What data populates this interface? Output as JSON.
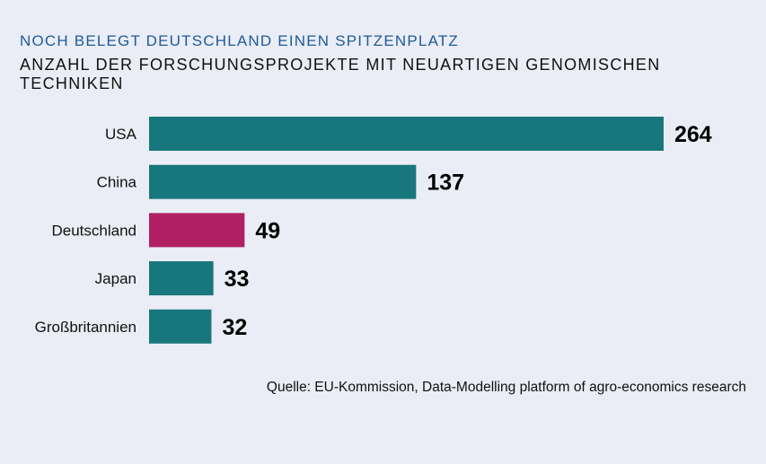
{
  "chart_data": {
    "type": "bar",
    "orientation": "horizontal",
    "kicker": "NOCH BELEGT DEUTSCHLAND EINEN SPITZENPLATZ",
    "title": "ANZAHL DER FORSCHUNGSPROJEKTE MIT NEUARTIGEN GENOMISCHEN TECHNIKEN",
    "categories": [
      "USA",
      "China",
      "Deutschland",
      "Japan",
      "Großbritannien"
    ],
    "values": [
      264,
      137,
      49,
      33,
      32
    ],
    "colors": [
      "#18777c",
      "#18777c",
      "#b01f62",
      "#18777c",
      "#18777c"
    ],
    "highlight": "Deutschland",
    "xlabel": "",
    "ylabel": "",
    "xlim": [
      0,
      264
    ],
    "grid": false,
    "legend": null,
    "source": "Quelle: EU-Kommission, Data-Modelling platform of agro-economics research"
  }
}
